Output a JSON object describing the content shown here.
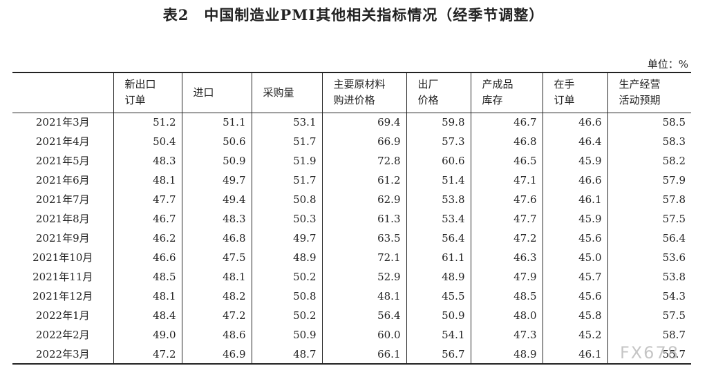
{
  "title": {
    "number": "表2",
    "text": "中国制造业PMI其他相关指标情况（经季节调整）"
  },
  "unit_label": "单位：%",
  "columns": [
    {
      "line1": "",
      "line2": ""
    },
    {
      "line1": "新出口",
      "line2": "订单"
    },
    {
      "line1": "进口",
      "line2": ""
    },
    {
      "line1": "采购量",
      "line2": ""
    },
    {
      "line1": "主要原材料",
      "line2": "购进价格"
    },
    {
      "line1": "出厂",
      "line2": "价格"
    },
    {
      "line1": "产成品",
      "line2": "库存"
    },
    {
      "line1": "在手",
      "line2": "订单"
    },
    {
      "line1": "生产经营",
      "line2": "活动预期"
    }
  ],
  "rows": [
    [
      "2021年3月",
      "51.2",
      "51.1",
      "53.1",
      "69.4",
      "59.8",
      "46.7",
      "46.6",
      "58.5"
    ],
    [
      "2021年4月",
      "50.4",
      "50.6",
      "51.7",
      "66.9",
      "57.3",
      "46.8",
      "46.4",
      "58.3"
    ],
    [
      "2021年5月",
      "48.3",
      "50.9",
      "51.9",
      "72.8",
      "60.6",
      "46.5",
      "45.9",
      "58.2"
    ],
    [
      "2021年6月",
      "48.1",
      "49.7",
      "51.7",
      "61.2",
      "51.4",
      "47.1",
      "46.6",
      "57.9"
    ],
    [
      "2021年7月",
      "47.7",
      "49.4",
      "50.8",
      "62.9",
      "53.8",
      "47.6",
      "46.1",
      "57.8"
    ],
    [
      "2021年8月",
      "46.7",
      "48.3",
      "50.3",
      "61.3",
      "53.4",
      "47.7",
      "45.9",
      "57.5"
    ],
    [
      "2021年9月",
      "46.2",
      "46.8",
      "49.7",
      "63.5",
      "56.4",
      "47.2",
      "45.6",
      "56.4"
    ],
    [
      "2021年10月",
      "46.6",
      "47.5",
      "48.9",
      "72.1",
      "61.1",
      "46.3",
      "45.0",
      "53.6"
    ],
    [
      "2021年11月",
      "48.5",
      "48.1",
      "50.2",
      "52.9",
      "48.9",
      "47.9",
      "45.7",
      "53.8"
    ],
    [
      "2021年12月",
      "48.1",
      "48.2",
      "50.8",
      "48.1",
      "45.5",
      "48.5",
      "45.6",
      "54.3"
    ],
    [
      "2022年1月",
      "48.4",
      "47.2",
      "50.2",
      "56.4",
      "50.9",
      "48.0",
      "45.8",
      "57.5"
    ],
    [
      "2022年2月",
      "49.0",
      "48.6",
      "50.9",
      "60.0",
      "54.1",
      "47.3",
      "45.2",
      "58.7"
    ],
    [
      "2022年3月",
      "47.2",
      "46.9",
      "48.7",
      "66.1",
      "56.7",
      "48.9",
      "46.1",
      "55.7"
    ]
  ],
  "watermark": "FX678"
}
